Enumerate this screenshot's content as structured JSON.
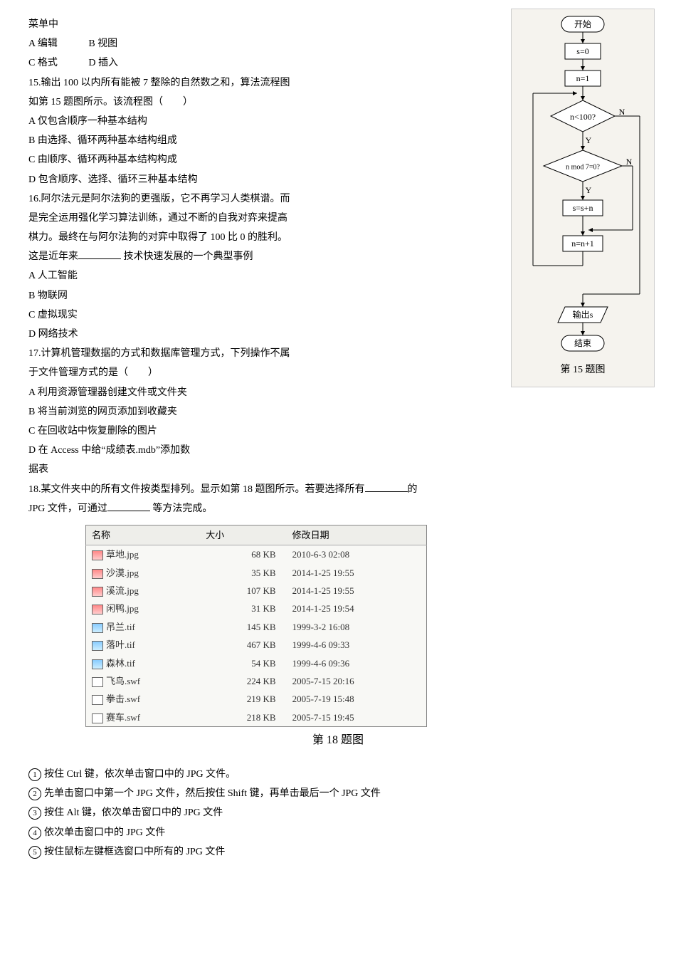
{
  "q_prefix": "菜单中",
  "q14_opts": {
    "a": "A  编辑",
    "b": "B  视图",
    "c": "C  格式",
    "d": "D  插入"
  },
  "q15": {
    "stem1": "15.输出 100 以内所有能被 7 整除的自然数之和，算法流程图",
    "stem2": "如第 15 题图所示。该流程图（　　）",
    "a": "A  仅包含顺序一种基本结构",
    "b": "B  由选择、循环两种基本结构组成",
    "c": "C  由顺序、循环两种基本结构构成",
    "d": "D  包含顺序、选择、循环三种基本结构"
  },
  "q16": {
    "l1": "16.阿尔法元是阿尔法狗的更强版，它不再学习人类棋谱。而",
    "l2": "是完全运用强化学习算法训练，通过不断的自我对弈来提高",
    "l3": "棋力。最终在与阿尔法狗的对弈中取得了 100 比 0 的胜利。",
    "l4a": "这是近年来",
    "l4b": " 技术快速发展的一个典型事例",
    "a": "A  人工智能",
    "b": "B  物联网",
    "c": "C  虚拟现实",
    "d": "D  网络技术"
  },
  "q17": {
    "l1": "17.计算机管理数据的方式和数据库管理方式，下列操作不属",
    "l2": "于文件管理方式的是（　　）",
    "a": "A  利用资源管理器创建文件或文件夹",
    "b": "B  将当前浏览的网页添加到收藏夹",
    "c": "C  在回收站中恢复删除的图片",
    "d": "D  在 Access 中给“成绩表.mdb”添加数",
    "d2": "据表"
  },
  "q18": {
    "l1a": "18.某文件夹中的所有文件按类型排列。显示如第 18 题图所示。若要选择所有",
    "l1b": "的",
    "l2a": "JPG 文件，可通过",
    "l2b": " 等方法完成。"
  },
  "table": {
    "headers": {
      "name": "名称",
      "size": "大小",
      "date": "修改日期"
    },
    "rows": [
      {
        "icon": "jpg",
        "name": "草地.jpg",
        "size": "68 KB",
        "date": "2010-6-3 02:08"
      },
      {
        "icon": "jpg",
        "name": "沙漠.jpg",
        "size": "35 KB",
        "date": "2014-1-25 19:55"
      },
      {
        "icon": "jpg",
        "name": "溪流.jpg",
        "size": "107 KB",
        "date": "2014-1-25 19:55"
      },
      {
        "icon": "jpg",
        "name": "闲鸭.jpg",
        "size": "31 KB",
        "date": "2014-1-25 19:54"
      },
      {
        "icon": "tif",
        "name": "吊兰.tif",
        "size": "145 KB",
        "date": "1999-3-2 16:08"
      },
      {
        "icon": "tif",
        "name": "落叶.tif",
        "size": "467 KB",
        "date": "1999-4-6 09:33"
      },
      {
        "icon": "tif",
        "name": "森林.tif",
        "size": "54 KB",
        "date": "1999-4-6 09:36"
      },
      {
        "icon": "swf",
        "name": "飞鸟.swf",
        "size": "224 KB",
        "date": "2005-7-15 20:16"
      },
      {
        "icon": "swf",
        "name": "拳击.swf",
        "size": "219 KB",
        "date": "2005-7-19 15:48"
      },
      {
        "icon": "swf",
        "name": "赛车.swf",
        "size": "218 KB",
        "date": "2005-7-15 19:45"
      }
    ],
    "caption": "第 18 题图"
  },
  "q18_opts": {
    "o1": "按住 Ctrl 键，依次单击窗口中的 JPG 文件。",
    "o2": "先单击窗口中第一个 JPG 文件，然后按住 Shift 键，再单击最后一个 JPG 文件",
    "o3": "按住 Alt 键，依次单击窗口中的 JPG 文件",
    "o4": "依次单击窗口中的 JPG 文件",
    "o5": "按住鼠标左键框选窗口中所有的 JPG 文件"
  },
  "flowchart": {
    "start": "开始",
    "s0": "s=0",
    "n1": "n=1",
    "cond1": "n<100?",
    "cond2": "n mod 7=0?",
    "ssn": "s=s+n",
    "nn1": "n=n+1",
    "out": "输出s",
    "end": "结束",
    "yes": "Y",
    "no": "N",
    "caption": "第 15 题图"
  }
}
